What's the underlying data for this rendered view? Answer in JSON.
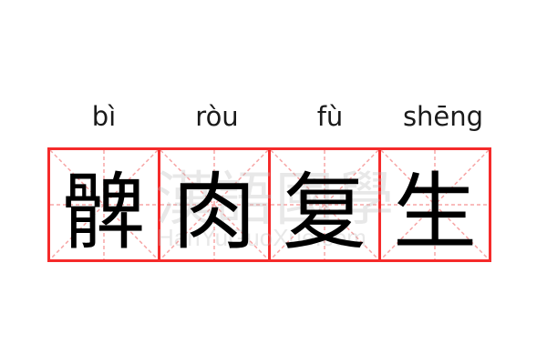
{
  "pinyin": [
    "bì",
    "ròu",
    "fù",
    "shēng"
  ],
  "characters": [
    "髀",
    "肉",
    "复",
    "生"
  ],
  "watermark": {
    "chinese": "漢語國學",
    "latin": "HanYuGuoXue.com"
  },
  "colors": {
    "grid_border": "#f52a2a",
    "guide_lines": "#f7a5a5",
    "text": "#000000"
  }
}
